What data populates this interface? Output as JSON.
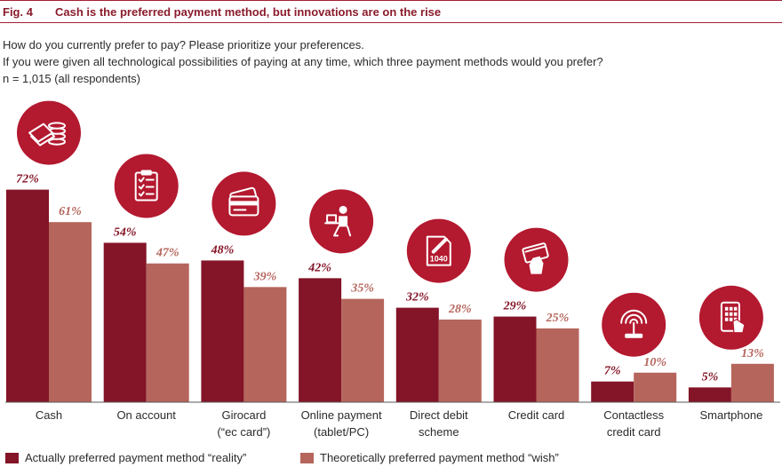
{
  "header": {
    "fig_label": "Fig. 4",
    "title": "Cash is the preferred payment method, but innovations are on the rise"
  },
  "subtitle": {
    "line1": "How do you currently prefer to pay? Please prioritize your preferences.",
    "line2": "If you were given all technological possibilities of paying at any time, which three payment methods would you prefer?",
    "line3": "n = 1,015 (all respondents)"
  },
  "colors": {
    "reality": "#841427",
    "wish": "#b5655c",
    "icon_bg": "#b3192f"
  },
  "legend": {
    "reality": "Actually preferred payment method “reality”",
    "wish": "Theoretically preferred payment method “wish”"
  },
  "chart_data": {
    "type": "bar",
    "categories": [
      [
        "Cash"
      ],
      [
        "On account"
      ],
      [
        "Girocard",
        "(“ec card”)"
      ],
      [
        "Online payment",
        "(tablet/PC)"
      ],
      [
        "Direct debit",
        "scheme"
      ],
      [
        "Credit card"
      ],
      [
        "Contactless",
        "credit card"
      ],
      [
        "Smartphone"
      ]
    ],
    "icons": [
      "cash-icon",
      "clipboard-icon",
      "girocard-icon",
      "online-payment-icon",
      "direct-debit-icon",
      "credit-card-icon",
      "contactless-icon",
      "smartphone-icon"
    ],
    "series": [
      {
        "name": "Actually preferred payment method “reality”",
        "values": [
          72,
          54,
          48,
          42,
          32,
          29,
          7,
          5
        ],
        "labels": [
          "72%",
          "54%",
          "48%",
          "42%",
          "32%",
          "29%",
          "7%",
          "5%"
        ]
      },
      {
        "name": "Theoretically preferred payment method “wish”",
        "values": [
          61,
          47,
          39,
          35,
          28,
          25,
          10,
          13
        ],
        "labels": [
          "61%",
          "47%",
          "39%",
          "35%",
          "28%",
          "25%",
          "10%",
          "13%"
        ]
      }
    ],
    "ylim": [
      0,
      100
    ],
    "grid": false,
    "legend_position": "bottom-left"
  }
}
